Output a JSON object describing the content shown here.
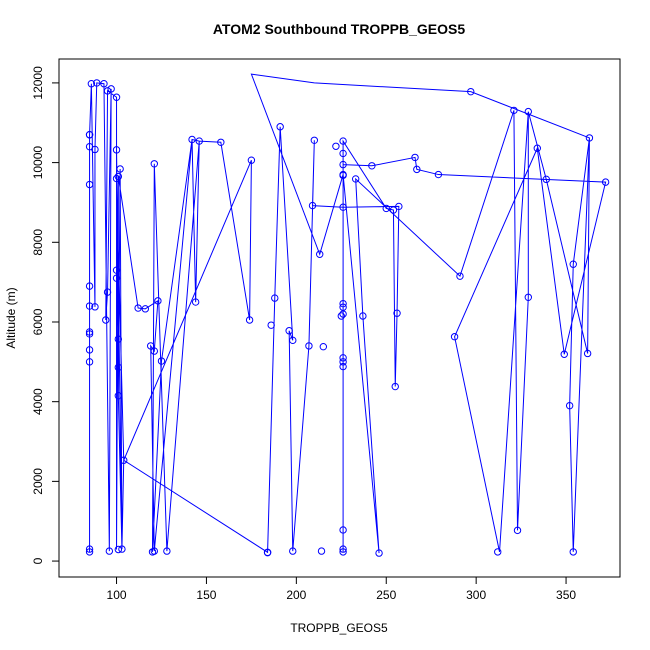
{
  "chart_data": {
    "type": "line",
    "title": "ATOM2 Southbound TROPPB_GEOS5",
    "xlabel": "TROPPB_GEOS5",
    "ylabel": "Altitude (m)",
    "xlim": [
      68,
      380
    ],
    "ylim": [
      -400,
      12600
    ],
    "xticks": [
      100,
      150,
      200,
      250,
      300,
      350
    ],
    "yticks": [
      0,
      2000,
      4000,
      6000,
      8000,
      10000,
      12000
    ],
    "markers": "open-circle",
    "grid": false,
    "legend": "none",
    "series": [
      {
        "color": "#0000ff",
        "points": [
          [
            85,
            230
          ],
          [
            85,
            300
          ],
          [
            85,
            5000
          ],
          [
            85,
            5300
          ],
          [
            85,
            5750
          ],
          [
            85,
            5700
          ],
          [
            85,
            6400
          ],
          [
            85,
            6900
          ],
          [
            85,
            9450
          ],
          [
            85,
            10400
          ],
          [
            85,
            10700
          ],
          [
            85,
            10700
          ],
          [
            86,
            11980
          ],
          [
            89,
            12000
          ],
          [
            88,
            10330
          ],
          [
            88,
            6380
          ],
          [
            93,
            11980
          ],
          [
            94,
            6050
          ],
          [
            95,
            6750
          ],
          [
            95,
            11800
          ],
          [
            96,
            250
          ],
          [
            97,
            11850
          ],
          [
            100,
            11640
          ],
          [
            100,
            10320
          ],
          [
            100,
            9600
          ],
          [
            100,
            7300
          ],
          [
            100,
            7100
          ],
          [
            101,
            5570
          ],
          [
            101,
            4860
          ],
          [
            101,
            4150
          ],
          [
            101,
            290
          ],
          [
            101,
            9650
          ],
          [
            102,
            9840
          ],
          [
            103,
            300
          ],
          [
            104,
            2530
          ],
          [
            112,
            6350
          ],
          [
            116,
            6330
          ],
          [
            119,
            5400
          ],
          [
            120,
            230
          ],
          [
            121,
            250
          ],
          [
            121,
            5270
          ],
          [
            121,
            9970
          ],
          [
            123,
            6530
          ],
          [
            125,
            5020
          ],
          [
            128,
            250
          ],
          [
            142,
            10580
          ],
          [
            144,
            6500
          ],
          [
            146,
            10540
          ],
          [
            158,
            10510
          ],
          [
            174,
            6050
          ],
          [
            175,
            10060
          ],
          [
            184,
            220
          ],
          [
            184,
            210
          ],
          [
            186,
            5920
          ],
          [
            188,
            6600
          ],
          [
            191,
            10900
          ],
          [
            196,
            5780
          ],
          [
            198,
            5540
          ],
          [
            198,
            250
          ],
          [
            207,
            5400
          ],
          [
            209,
            8920
          ],
          [
            210,
            10560
          ],
          [
            213,
            7700
          ],
          [
            214,
            250
          ],
          [
            215,
            5380
          ],
          [
            222,
            10410
          ],
          [
            225,
            6150
          ],
          [
            226,
            8880
          ],
          [
            226,
            10540
          ],
          [
            226,
            10230
          ],
          [
            226,
            9950
          ],
          [
            226,
            9700
          ],
          [
            226,
            6200
          ],
          [
            226,
            6370
          ],
          [
            226,
            6460
          ],
          [
            226,
            5100
          ],
          [
            226,
            5000
          ],
          [
            226,
            4880
          ],
          [
            226,
            780
          ],
          [
            226,
            300
          ],
          [
            226,
            230
          ],
          [
            226,
            9680
          ],
          [
            233,
            9590
          ],
          [
            237,
            6150
          ],
          [
            242,
            9920
          ],
          [
            246,
            200
          ],
          [
            250,
            8850
          ],
          [
            254,
            8810
          ],
          [
            255,
            4380
          ],
          [
            256,
            6220
          ],
          [
            257,
            8900
          ],
          [
            266,
            10130
          ],
          [
            267,
            9830
          ],
          [
            279,
            9700
          ],
          [
            288,
            5630
          ],
          [
            291,
            7150
          ],
          [
            297,
            11780
          ],
          [
            312,
            230
          ],
          [
            321,
            11310
          ],
          [
            323,
            770
          ],
          [
            329,
            11280
          ],
          [
            329,
            6620
          ],
          [
            334,
            10360
          ],
          [
            339,
            9580
          ],
          [
            349,
            5190
          ],
          [
            352,
            3900
          ],
          [
            354,
            7450
          ],
          [
            354,
            230
          ],
          [
            362,
            5210
          ],
          [
            363,
            10620
          ],
          [
            372,
            9510
          ]
        ],
        "path": [
          [
            85,
            230
          ],
          [
            85,
            10700
          ],
          [
            85,
            300
          ],
          [
            85,
            10700
          ],
          [
            86,
            11980
          ],
          [
            88,
            6380
          ],
          [
            88,
            10330
          ],
          [
            89,
            12000
          ],
          [
            93,
            11980
          ],
          [
            96,
            250
          ],
          [
            97,
            11850
          ],
          [
            95,
            6750
          ],
          [
            94,
            6050
          ],
          [
            95,
            11800
          ],
          [
            100,
            11640
          ],
          [
            100,
            290
          ],
          [
            101,
            9650
          ],
          [
            101,
            4150
          ],
          [
            102,
            9840
          ],
          [
            103,
            300
          ],
          [
            100,
            10320
          ],
          [
            101,
            5570
          ],
          [
            100,
            7300
          ],
          [
            101,
            4860
          ],
          [
            100,
            9600
          ],
          [
            104,
            2530
          ],
          [
            175,
            10060
          ],
          [
            174,
            6050
          ],
          [
            158,
            10510
          ],
          [
            146,
            10540
          ],
          [
            142,
            10580
          ],
          [
            144,
            6500
          ],
          [
            146,
            10540
          ],
          [
            128,
            250
          ],
          [
            121,
            9970
          ],
          [
            120,
            230
          ],
          [
            125,
            5020
          ],
          [
            142,
            10580
          ],
          [
            121,
            250
          ],
          [
            119,
            5400
          ],
          [
            121,
            5270
          ],
          [
            123,
            6530
          ],
          [
            116,
            6330
          ],
          [
            112,
            6350
          ],
          [
            101,
            9650
          ],
          [
            101,
            4150
          ],
          [
            103,
            300
          ],
          [
            104,
            2530
          ],
          [
            184,
            220
          ],
          [
            188,
            6600
          ],
          [
            191,
            10900
          ],
          [
            198,
            5540
          ],
          [
            196,
            5780
          ],
          [
            198,
            250
          ],
          [
            207,
            5400
          ],
          [
            210,
            10560
          ],
          [
            209,
            8920
          ],
          [
            226,
            8880
          ],
          [
            257,
            8900
          ],
          [
            256,
            6220
          ],
          [
            255,
            4380
          ],
          [
            254,
            8810
          ],
          [
            250,
            8850
          ],
          [
            226,
            10540
          ],
          [
            226,
            230
          ],
          [
            226,
            9950
          ],
          [
            242,
            9920
          ],
          [
            266,
            10130
          ],
          [
            267,
            9830
          ],
          [
            279,
            9700
          ],
          [
            372,
            9510
          ],
          [
            349,
            5190
          ],
          [
            334,
            10360
          ],
          [
            288,
            5630
          ],
          [
            313,
            230
          ],
          [
            329,
            11280
          ],
          [
            329,
            6620
          ],
          [
            323,
            770
          ],
          [
            321,
            11310
          ],
          [
            291,
            7150
          ],
          [
            233,
            9590
          ],
          [
            237,
            6150
          ],
          [
            246,
            200
          ],
          [
            226,
            9700
          ],
          [
            213,
            7700
          ],
          [
            175,
            12220
          ],
          [
            210,
            12000
          ],
          [
            297,
            11780
          ],
          [
            363,
            10620
          ],
          [
            354,
            7450
          ],
          [
            352,
            3900
          ],
          [
            354,
            230
          ],
          [
            363,
            10620
          ],
          [
            362,
            5210
          ],
          [
            339,
            9580
          ],
          [
            329,
            11280
          ]
        ]
      }
    ]
  }
}
